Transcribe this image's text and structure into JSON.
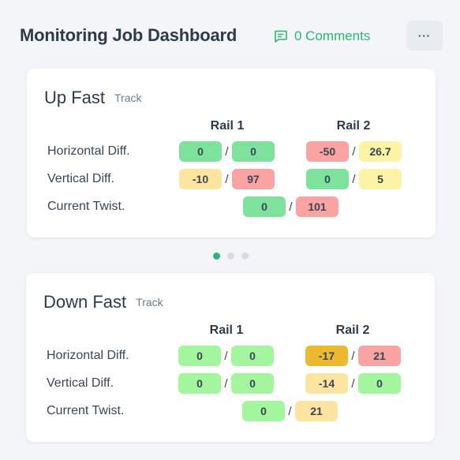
{
  "header": {
    "title": "Monitoring Job Dashboard",
    "comments_label": "0 Comments",
    "more_label": "···"
  },
  "colors": {
    "green_strong": "#7ee29d",
    "green_light": "#a3f59e",
    "yellow": "#fdf3a4",
    "amber": "#fde5a1",
    "gold": "#edb931",
    "red": "#f9a3a3",
    "accent": "#2bb673"
  },
  "cards": [
    {
      "title": "Up Fast",
      "subtitle": "Track",
      "col1": "Rail 1",
      "col2": "Rail 2",
      "rows": [
        {
          "label": "Horizontal Diff.",
          "rail1": [
            {
              "v": "0",
              "c": "green_strong"
            },
            {
              "v": "0",
              "c": "green_strong"
            }
          ],
          "rail2": [
            {
              "v": "-50",
              "c": "red"
            },
            {
              "v": "26.7",
              "c": "yellow"
            }
          ]
        },
        {
          "label": "Vertical Diff.",
          "rail1": [
            {
              "v": "-10",
              "c": "amber"
            },
            {
              "v": "97",
              "c": "red"
            }
          ],
          "rail2": [
            {
              "v": "0",
              "c": "green_strong"
            },
            {
              "v": "5",
              "c": "yellow"
            }
          ]
        },
        {
          "label": "Current Twist.",
          "twist": [
            {
              "v": "0",
              "c": "green_strong"
            },
            {
              "v": "101",
              "c": "red"
            }
          ]
        }
      ]
    },
    {
      "title": "Down Fast",
      "subtitle": "Track",
      "col1": "Rail 1",
      "col2": "Rail 2",
      "rows": [
        {
          "label": "Horizontal Diff.",
          "rail1": [
            {
              "v": "0",
              "c": "green_light"
            },
            {
              "v": "0",
              "c": "green_light"
            }
          ],
          "rail2": [
            {
              "v": "-17",
              "c": "gold"
            },
            {
              "v": "21",
              "c": "red"
            }
          ]
        },
        {
          "label": "Vertical Diff.",
          "rail1": [
            {
              "v": "0",
              "c": "green_light"
            },
            {
              "v": "0",
              "c": "green_light"
            }
          ],
          "rail2": [
            {
              "v": "-14",
              "c": "amber"
            },
            {
              "v": "0",
              "c": "green_light"
            }
          ]
        },
        {
          "label": "Current Twist.",
          "twist": [
            {
              "v": "0",
              "c": "green_light"
            },
            {
              "v": "21",
              "c": "amber"
            }
          ]
        }
      ]
    }
  ],
  "pagination": {
    "count": 3,
    "active": 0
  }
}
